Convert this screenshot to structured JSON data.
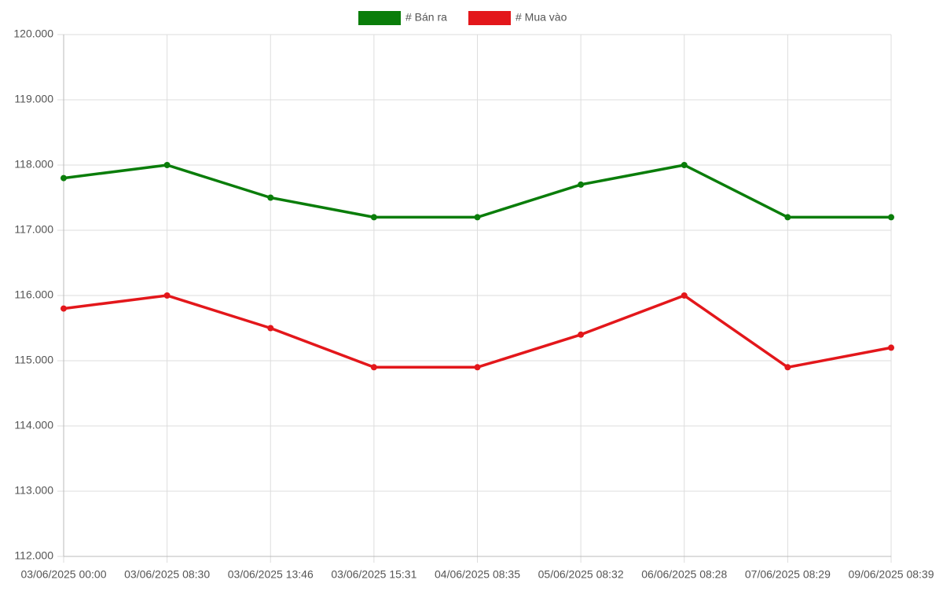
{
  "chart_data": {
    "type": "line",
    "categories": [
      "03/06/2025 00:00",
      "03/06/2025 08:30",
      "03/06/2025 13:46",
      "03/06/2025 15:31",
      "04/06/2025 08:35",
      "05/06/2025 08:32",
      "06/06/2025 08:28",
      "07/06/2025 08:29",
      "09/06/2025 08:39"
    ],
    "series": [
      {
        "name": "# Bán ra",
        "color": "#0a7d0a",
        "values": [
          117800,
          118000,
          117500,
          117200,
          117200,
          117700,
          118000,
          117200,
          117200
        ]
      },
      {
        "name": "# Mua vào",
        "color": "#e3171b",
        "values": [
          115800,
          116000,
          115500,
          114900,
          114900,
          115400,
          116000,
          114900,
          115200
        ]
      }
    ],
    "ylim": [
      112000,
      120000
    ],
    "yticks": [
      {
        "value": 112000,
        "label": "112.000"
      },
      {
        "value": 113000,
        "label": "113.000"
      },
      {
        "value": 114000,
        "label": "114.000"
      },
      {
        "value": 115000,
        "label": "115.000"
      },
      {
        "value": 116000,
        "label": "116.000"
      },
      {
        "value": 117000,
        "label": "117.000"
      },
      {
        "value": 118000,
        "label": "118.000"
      },
      {
        "value": 119000,
        "label": "119.000"
      },
      {
        "value": 120000,
        "label": "120.000"
      }
    ],
    "grid": true,
    "legend": "top"
  }
}
